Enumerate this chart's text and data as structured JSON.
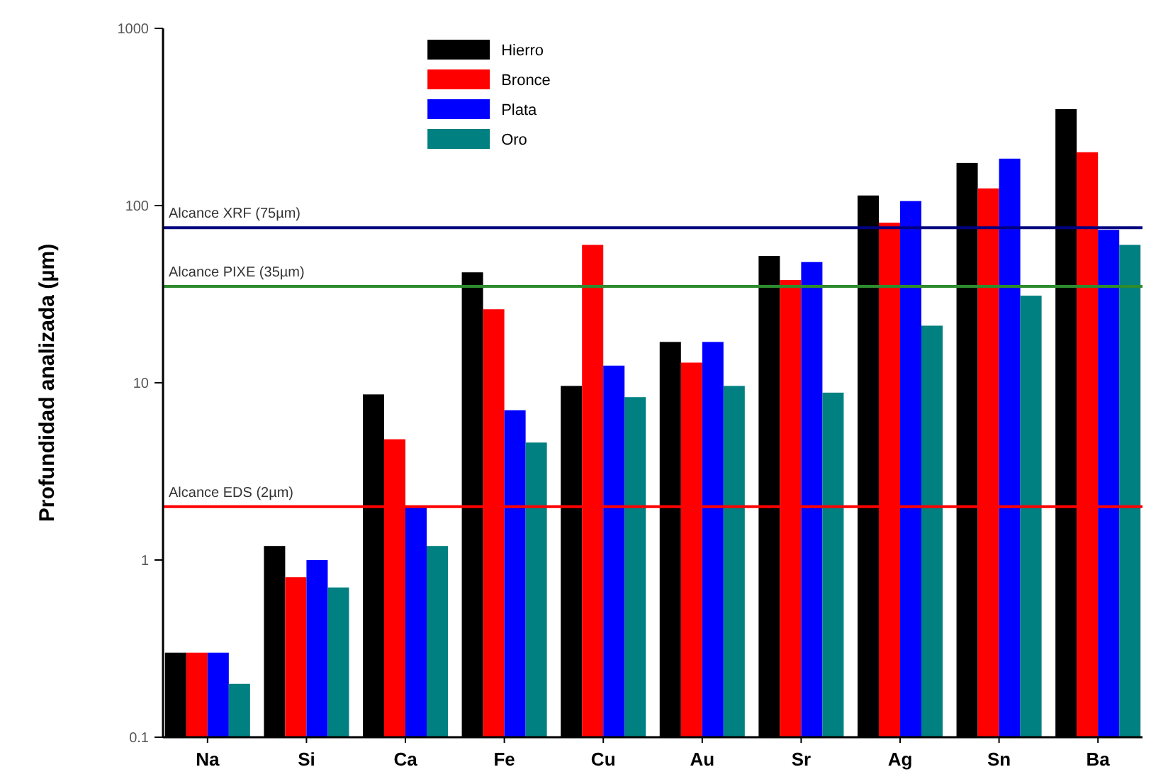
{
  "chart_data": {
    "type": "bar",
    "ylabel": "Profundidad analizada  (µm)",
    "log": true,
    "ylim": [
      0.1,
      1000
    ],
    "yticks": [
      0.1,
      1,
      10,
      100,
      1000
    ],
    "legend": "top",
    "grid": false,
    "categories": [
      "Na",
      "Si",
      "Ca",
      "Fe",
      "Cu",
      "Au",
      "Sr",
      "Ag",
      "Sn",
      "Ba"
    ],
    "series": [
      {
        "name": "Hierro",
        "color": "#000000",
        "values": [
          0.3,
          1.2,
          8.6,
          42,
          9.6,
          17,
          52,
          114,
          174,
          350
        ]
      },
      {
        "name": "Bronce",
        "color": "#ff0000",
        "values": [
          0.3,
          0.8,
          4.8,
          26,
          60,
          13,
          38,
          80,
          125,
          200
        ]
      },
      {
        "name": "Plata",
        "color": "#0000ff",
        "values": [
          0.3,
          1.0,
          2.0,
          7.0,
          12.5,
          17,
          48,
          106,
          184,
          73
        ]
      },
      {
        "name": "Oro",
        "color": "#008080",
        "values": [
          0.2,
          0.7,
          1.2,
          4.6,
          8.3,
          9.6,
          8.8,
          21,
          31,
          60
        ]
      }
    ],
    "ref_lines": [
      {
        "axis": "y",
        "value": 75,
        "label": "Alcance XRF (75µm)",
        "color": "#000080"
      },
      {
        "axis": "y",
        "value": 35,
        "label": "Alcance PIXE (35µm)",
        "color": "#2e8b2e"
      },
      {
        "axis": "y",
        "value": 2,
        "label": "Alcance EDS (2µm)",
        "color": "#ff0000"
      }
    ]
  }
}
